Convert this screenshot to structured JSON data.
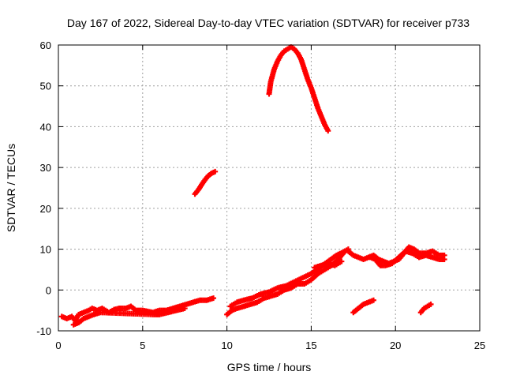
{
  "chart_data": {
    "type": "scatter",
    "title": "Day 167 of 2022, Sidereal Day-to-day VTEC variation (SDTVAR) for receiver p733",
    "xlabel": "GPS time / hours",
    "ylabel": "SDTVAR / TECUs",
    "xlim": [
      0,
      25
    ],
    "ylim": [
      -10,
      60
    ],
    "xticks": [
      0,
      5,
      10,
      15,
      20,
      25
    ],
    "yticks": [
      -10,
      0,
      10,
      20,
      30,
      40,
      50,
      60
    ],
    "grid": true,
    "marker": "plus",
    "color": "#ff0000",
    "series": [
      {
        "values": [
          [
            12.5,
            48
          ],
          [
            12.6,
            51
          ],
          [
            12.8,
            54
          ],
          [
            13.0,
            56
          ],
          [
            13.2,
            57.5
          ],
          [
            13.4,
            58.5
          ],
          [
            13.6,
            59
          ],
          [
            13.8,
            59.5
          ],
          [
            14.0,
            59
          ],
          [
            14.2,
            58
          ],
          [
            14.4,
            56.5
          ],
          [
            14.6,
            54
          ],
          [
            14.8,
            51.5
          ],
          [
            15.0,
            49.5
          ],
          [
            15.2,
            47
          ],
          [
            15.4,
            44.5
          ],
          [
            15.6,
            42.5
          ],
          [
            15.8,
            40.5
          ],
          [
            16.0,
            39
          ]
        ]
      },
      {
        "values": [
          [
            8.1,
            23.5
          ],
          [
            8.3,
            24.5
          ],
          [
            8.5,
            25.8
          ],
          [
            8.7,
            27
          ],
          [
            8.9,
            28
          ],
          [
            9.1,
            28.6
          ],
          [
            9.3,
            29
          ]
        ]
      },
      {
        "values": [
          [
            0.2,
            -6.5
          ],
          [
            0.5,
            -7
          ],
          [
            0.8,
            -6.5
          ],
          [
            1.0,
            -7.5
          ],
          [
            1.2,
            -6
          ],
          [
            1.5,
            -5.5
          ],
          [
            1.8,
            -5
          ],
          [
            2.0,
            -4.5
          ],
          [
            2.3,
            -5
          ],
          [
            2.6,
            -4.5
          ],
          [
            3.0,
            -5.5
          ],
          [
            3.3,
            -4.8
          ],
          [
            3.6,
            -4.5
          ],
          [
            4.0,
            -4.5
          ],
          [
            4.3,
            -4
          ],
          [
            4.6,
            -5
          ],
          [
            5.0,
            -5
          ],
          [
            5.6,
            -5.5
          ],
          [
            6.0,
            -5
          ],
          [
            6.4,
            -5
          ],
          [
            6.8,
            -4.5
          ],
          [
            7.2,
            -4
          ],
          [
            7.6,
            -3.5
          ],
          [
            8.0,
            -3
          ],
          [
            8.4,
            -2.5
          ],
          [
            8.8,
            -2.5
          ],
          [
            9.2,
            -2
          ]
        ]
      },
      {
        "values": [
          [
            0.9,
            -8.5
          ],
          [
            1.2,
            -8
          ],
          [
            1.5,
            -7
          ],
          [
            1.8,
            -6.5
          ],
          [
            2.1,
            -6
          ],
          [
            2.5,
            -5.5
          ],
          [
            5.6,
            -6
          ],
          [
            6.0,
            -6
          ],
          [
            6.5,
            -5.5
          ],
          [
            7.0,
            -5
          ],
          [
            7.5,
            -4.5
          ]
        ]
      },
      {
        "values": [
          [
            10.0,
            -6
          ],
          [
            10.3,
            -5
          ],
          [
            10.6,
            -4.5
          ],
          [
            11.0,
            -4
          ],
          [
            11.4,
            -3.5
          ],
          [
            11.8,
            -3
          ],
          [
            12.2,
            -2
          ],
          [
            12.6,
            -1.5
          ],
          [
            13.0,
            -1
          ],
          [
            13.4,
            0
          ],
          [
            13.8,
            0.5
          ],
          [
            14.2,
            1.5
          ],
          [
            14.6,
            1.5
          ],
          [
            15.0,
            2.5
          ],
          [
            15.4,
            4
          ],
          [
            15.8,
            5
          ],
          [
            16.2,
            6
          ],
          [
            16.6,
            7.5
          ],
          [
            17.0,
            9.5
          ],
          [
            17.2,
            10
          ]
        ]
      },
      {
        "values": [
          [
            10.2,
            -4
          ],
          [
            10.6,
            -3
          ],
          [
            11.0,
            -2.5
          ],
          [
            11.5,
            -2
          ],
          [
            12.0,
            -1
          ],
          [
            12.5,
            -0.5
          ],
          [
            13.0,
            0.5
          ],
          [
            13.5,
            1
          ],
          [
            14.0,
            2
          ],
          [
            14.5,
            3
          ],
          [
            15.0,
            4
          ],
          [
            15.5,
            5.5
          ],
          [
            16.0,
            7
          ],
          [
            16.5,
            8.5
          ],
          [
            17.0,
            9.5
          ]
        ]
      },
      {
        "values": [
          [
            15.2,
            5.5
          ],
          [
            15.6,
            6
          ],
          [
            16.0,
            6.5
          ],
          [
            16.4,
            6
          ],
          [
            16.8,
            7
          ]
        ]
      },
      {
        "values": [
          [
            17.2,
            9.5
          ],
          [
            17.5,
            8.5
          ],
          [
            17.8,
            8
          ],
          [
            18.1,
            7.5
          ],
          [
            18.4,
            8
          ],
          [
            18.7,
            8.5
          ],
          [
            19.0,
            7.5
          ],
          [
            19.3,
            7
          ],
          [
            19.6,
            6.5
          ],
          [
            19.9,
            7
          ],
          [
            20.2,
            7.5
          ],
          [
            20.5,
            9
          ],
          [
            20.8,
            10.5
          ],
          [
            21.1,
            10
          ],
          [
            21.4,
            9
          ],
          [
            21.8,
            9
          ],
          [
            22.2,
            9.5
          ],
          [
            22.6,
            8.5
          ],
          [
            22.9,
            8.5
          ]
        ]
      },
      {
        "values": [
          [
            18.5,
            8
          ],
          [
            18.8,
            7.5
          ],
          [
            19.1,
            6
          ],
          [
            19.4,
            6
          ],
          [
            19.8,
            6.5
          ],
          [
            20.2,
            8
          ],
          [
            20.6,
            9.5
          ],
          [
            21.0,
            9
          ],
          [
            21.4,
            8
          ],
          [
            21.8,
            8.5
          ],
          [
            22.2,
            8
          ],
          [
            22.6,
            7.5
          ],
          [
            22.9,
            7.5
          ]
        ]
      },
      {
        "values": [
          [
            17.5,
            -5.5
          ],
          [
            17.8,
            -4.5
          ],
          [
            18.1,
            -3.5
          ],
          [
            18.4,
            -3
          ],
          [
            18.7,
            -2.5
          ]
        ]
      },
      {
        "values": [
          [
            21.5,
            -5.5
          ],
          [
            21.7,
            -4.5
          ],
          [
            21.9,
            -4
          ],
          [
            22.1,
            -3.5
          ]
        ]
      }
    ]
  }
}
